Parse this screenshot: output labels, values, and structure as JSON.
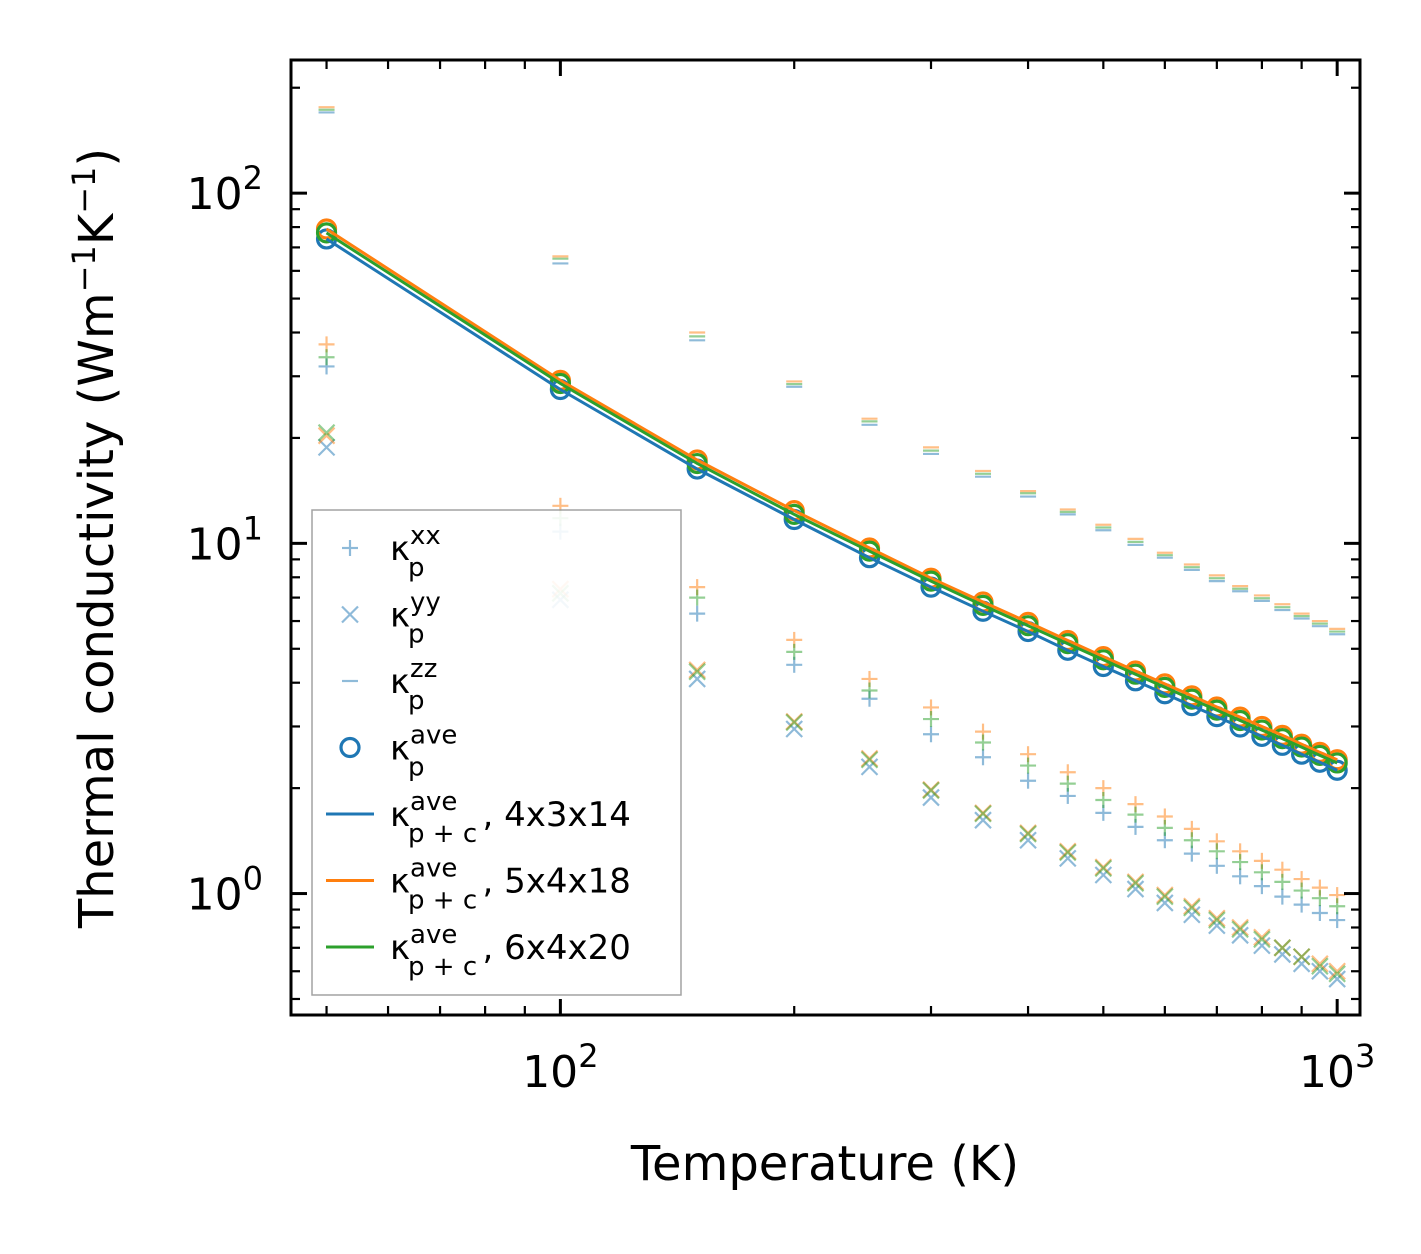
{
  "chart_data": {
    "type": "scatter",
    "xscale": "log",
    "yscale": "log",
    "xlabel": "Temperature (K)",
    "ylabel_parts": {
      "base": "Thermal conductivity (Wm",
      "exp1": "−1",
      "mid": "K",
      "exp2": "−1",
      "end": ")"
    },
    "xlim": [
      45,
      1070
    ],
    "ylim": [
      0.45,
      240
    ],
    "x_ticks": [
      {
        "value": 100,
        "base": "10",
        "exp": "2"
      },
      {
        "value": 1000,
        "base": "10",
        "exp": "3"
      }
    ],
    "y_ticks": [
      {
        "value": 1,
        "base": "10",
        "exp": "0"
      },
      {
        "value": 10,
        "base": "10",
        "exp": "1"
      },
      {
        "value": 100,
        "base": "10",
        "exp": "2"
      }
    ],
    "temperatures": [
      50,
      100,
      150,
      200,
      250,
      300,
      350,
      400,
      450,
      500,
      550,
      600,
      650,
      700,
      750,
      800,
      850,
      900,
      950,
      1000
    ],
    "colors": {
      "blue": "#1f77b4",
      "orange": "#ff7f0e",
      "green": "#2ca02c"
    },
    "series": [
      {
        "name": "kxx 4x3x14",
        "kind": "plus",
        "color": "#1f77b4",
        "faded": true,
        "values": [
          32,
          10.8,
          6.3,
          4.5,
          3.6,
          2.85,
          2.45,
          2.1,
          1.9,
          1.7,
          1.55,
          1.42,
          1.3,
          1.2,
          1.12,
          1.05,
          0.98,
          0.93,
          0.88,
          0.84
        ]
      },
      {
        "name": "kxx 5x4x18",
        "kind": "plus",
        "color": "#ff7f0e",
        "faded": true,
        "values": [
          37,
          12.8,
          7.5,
          5.3,
          4.1,
          3.4,
          2.9,
          2.5,
          2.22,
          2.0,
          1.8,
          1.66,
          1.53,
          1.41,
          1.32,
          1.24,
          1.17,
          1.1,
          1.04,
          0.99
        ]
      },
      {
        "name": "kxx 6x4x20",
        "kind": "plus",
        "color": "#2ca02c",
        "faded": true,
        "values": [
          34,
          11.8,
          7.0,
          4.9,
          3.8,
          3.15,
          2.7,
          2.32,
          2.06,
          1.85,
          1.68,
          1.54,
          1.42,
          1.32,
          1.23,
          1.15,
          1.08,
          1.02,
          0.97,
          0.92
        ]
      },
      {
        "name": "kyy 4x3x14",
        "kind": "cross",
        "color": "#1f77b4",
        "faded": true,
        "values": [
          18.8,
          6.9,
          4.1,
          2.95,
          2.3,
          1.88,
          1.62,
          1.42,
          1.26,
          1.13,
          1.03,
          0.94,
          0.87,
          0.81,
          0.76,
          0.71,
          0.67,
          0.63,
          0.6,
          0.57
        ]
      },
      {
        "name": "kyy 5x4x18",
        "kind": "cross",
        "color": "#ff7f0e",
        "faded": true,
        "values": [
          20.3,
          7.4,
          4.35,
          3.1,
          2.43,
          1.98,
          1.7,
          1.49,
          1.32,
          1.19,
          1.08,
          0.99,
          0.92,
          0.85,
          0.8,
          0.75,
          0.7,
          0.66,
          0.63,
          0.6
        ]
      },
      {
        "name": "kyy 6x4x20",
        "kind": "cross",
        "color": "#2ca02c",
        "faded": true,
        "values": [
          20.7,
          7.2,
          4.3,
          3.08,
          2.41,
          1.97,
          1.69,
          1.48,
          1.31,
          1.18,
          1.07,
          0.98,
          0.91,
          0.84,
          0.79,
          0.74,
          0.7,
          0.66,
          0.62,
          0.59
        ]
      },
      {
        "name": "kzz 4x3x14",
        "kind": "dash",
        "color": "#1f77b4",
        "faded": true,
        "values": [
          170,
          63,
          38,
          28,
          21.8,
          18,
          15.5,
          13.6,
          12.1,
          10.9,
          9.9,
          9.1,
          8.4,
          7.8,
          7.3,
          6.85,
          6.45,
          6.1,
          5.8,
          5.5
        ]
      },
      {
        "name": "kzz 5x4x18",
        "kind": "dash",
        "color": "#ff7f0e",
        "faded": true,
        "values": [
          176,
          66,
          40,
          29,
          22.7,
          18.8,
          16.1,
          14.1,
          12.5,
          11.3,
          10.3,
          9.4,
          8.7,
          8.1,
          7.55,
          7.1,
          6.7,
          6.3,
          6.0,
          5.7
        ]
      },
      {
        "name": "kzz 6x4x20",
        "kind": "dash",
        "color": "#2ca02c",
        "faded": true,
        "values": [
          173,
          65,
          39,
          28.5,
          22.3,
          18.4,
          15.8,
          13.9,
          12.3,
          11.1,
          10.1,
          9.25,
          8.55,
          7.95,
          7.42,
          6.97,
          6.57,
          6.2,
          5.9,
          5.6
        ]
      },
      {
        "name": "kave 4x3x14",
        "kind": "line-circle",
        "color": "#1f77b4",
        "faded": false,
        "values": [
          74,
          27.5,
          16.3,
          11.7,
          9.1,
          7.5,
          6.4,
          5.6,
          4.95,
          4.45,
          4.05,
          3.72,
          3.44,
          3.2,
          2.99,
          2.81,
          2.65,
          2.5,
          2.37,
          2.25
        ]
      },
      {
        "name": "kave 5x4x18",
        "kind": "line-circle",
        "color": "#ff7f0e",
        "faded": false,
        "values": [
          79,
          29.2,
          17.3,
          12.4,
          9.7,
          7.95,
          6.8,
          5.95,
          5.28,
          4.75,
          4.32,
          3.97,
          3.67,
          3.41,
          3.19,
          3.0,
          2.83,
          2.67,
          2.53,
          2.41
        ]
      },
      {
        "name": "kave 6x4x20",
        "kind": "line-circle",
        "color": "#2ca02c",
        "faded": false,
        "values": [
          77,
          28.6,
          16.9,
          12.1,
          9.5,
          7.8,
          6.65,
          5.82,
          5.17,
          4.65,
          4.23,
          3.88,
          3.59,
          3.34,
          3.12,
          2.93,
          2.77,
          2.62,
          2.48,
          2.36
        ]
      }
    ],
    "legend": {
      "position": "lower-left",
      "entries": [
        {
          "symbol": "plus",
          "color": "#1f77b4",
          "base": "κ",
          "sup": "xx",
          "sub": "p",
          "suffix": ""
        },
        {
          "symbol": "cross",
          "color": "#1f77b4",
          "base": "κ",
          "sup": "yy",
          "sub": "p",
          "suffix": ""
        },
        {
          "symbol": "dash",
          "color": "#1f77b4",
          "base": "κ",
          "sup": "zz",
          "sub": "p",
          "suffix": ""
        },
        {
          "symbol": "circle",
          "color": "#1f77b4",
          "base": "κ",
          "sup": "ave",
          "sub": "p",
          "suffix": ""
        },
        {
          "symbol": "line",
          "color": "#1f77b4",
          "base": "κ",
          "sup": "ave",
          "sub": "p + c",
          "suffix": ", 4x3x14"
        },
        {
          "symbol": "line",
          "color": "#ff7f0e",
          "base": "κ",
          "sup": "ave",
          "sub": "p + c",
          "suffix": ", 5x4x18"
        },
        {
          "symbol": "line",
          "color": "#2ca02c",
          "base": "κ",
          "sup": "ave",
          "sub": "p + c",
          "suffix": ", 6x4x20"
        }
      ]
    }
  }
}
